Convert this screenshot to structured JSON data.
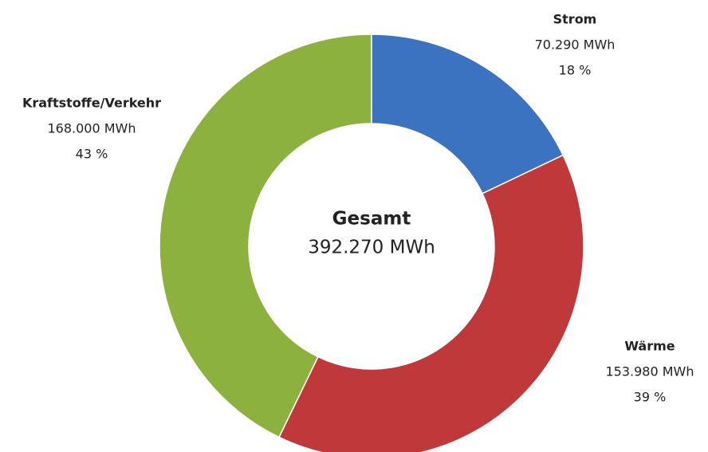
{
  "chart_data": {
    "type": "donut",
    "categories": [
      "Strom",
      "Wärme",
      "Kraftstoffe/Verkehr"
    ],
    "values": [
      70290,
      153980,
      168000
    ],
    "value_labels": [
      "70.290 MWh",
      "153.980 MWh",
      "168.000 MWh"
    ],
    "percent_labels": [
      "18 %",
      "39 %",
      "43 %"
    ],
    "colors": [
      "#3b73c0",
      "#bf383a",
      "#8cb13e"
    ],
    "center_title": "Gesamt",
    "center_label": "392.270 MWh"
  }
}
